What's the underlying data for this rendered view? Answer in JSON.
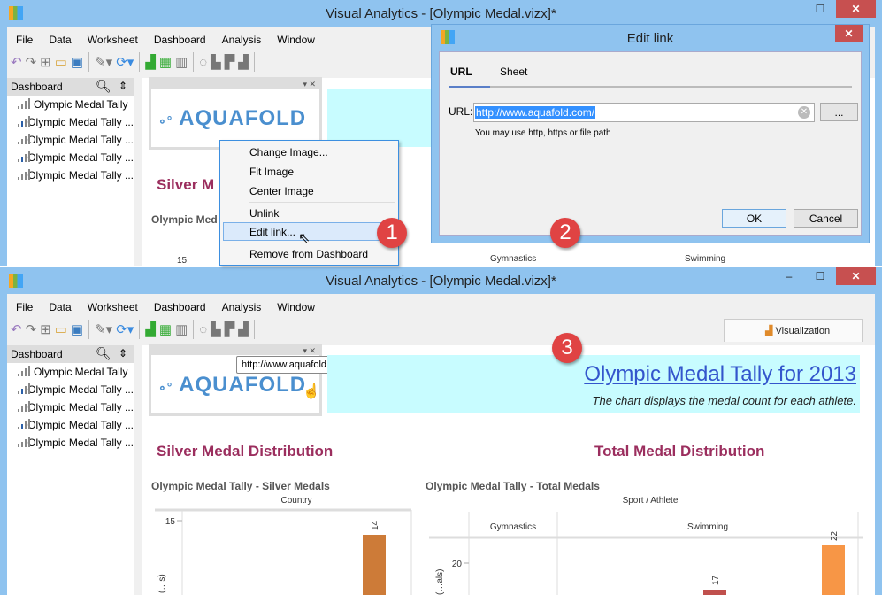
{
  "app": {
    "title": "Visual Analytics - [Olympic Medal.vizx]*",
    "window_controls": {
      "minimize": "–",
      "maximize": "☐",
      "close": "✕"
    },
    "menu": [
      "File",
      "Data",
      "Worksheet",
      "Dashboard",
      "Analysis",
      "Window"
    ],
    "toolbar_icons": [
      "undo-icon",
      "redo-icon",
      "new-icon",
      "open-icon",
      "save-icon",
      "brush-icon",
      "refresh-icon",
      "add-chart-icon",
      "add-table-icon",
      "chart-icon",
      "lasso-icon",
      "sort-asc-icon",
      "sort-desc-icon",
      "stack-icon"
    ],
    "visualization_tab": "Visualization",
    "sidebar": {
      "header": "Dashboard",
      "items": [
        "Olympic Medal Tally",
        "Olympic Medal Tally ...",
        "Olympic Medal Tally ...",
        "Olympic Medal Tally ...",
        "Olympic Medal Tally ..."
      ]
    }
  },
  "dashboard": {
    "logo_text": "AQUAFOLD",
    "title": "Olympic Medal Tally for 2013",
    "subtitle": "The chart displays the medal count for each athlete.",
    "tooltip": "http://www.aquafold.com/",
    "silver_section": "Silver Medal Distribution",
    "total_section": "Total Medal Distribution",
    "silver_chart_title": "Olympic Medal Tally - Silver Medals",
    "total_chart_title": "Olympic Medal Tally - Total Medals",
    "silver_section_cut": "Silver M",
    "silver_chart_title_cut": "Olympic Med"
  },
  "context_menu": {
    "items": [
      "Change Image...",
      "Fit Image",
      "Center Image",
      "Unlink",
      "Edit link...",
      "Remove from Dashboard"
    ],
    "highlighted": "Edit link..."
  },
  "edit_link_dialog": {
    "title": "Edit link",
    "tabs": [
      "URL",
      "Sheet"
    ],
    "active_tab": "URL",
    "url_label": "URL:",
    "url_value": "http://www.aquafold.com/",
    "browse_label": "...",
    "hint": "You may use http, https or file path",
    "ok": "OK",
    "cancel": "Cancel"
  },
  "badges": [
    "1",
    "2",
    "3"
  ],
  "chart_data": [
    {
      "type": "bar",
      "title": "Olympic Medal Tally - Silver Medals",
      "xlabel": "Country",
      "ylabel": "(…s)",
      "y_ticks": [
        15
      ],
      "values": [
        14
      ],
      "colors": [
        "#cd7b38"
      ]
    },
    {
      "type": "bar",
      "title": "Olympic Medal Tally - Total Medals",
      "xlabel": "Sport / Athlete",
      "ylabel": "(…als)",
      "categories": [
        "Gymnastics",
        "Swimming"
      ],
      "y_ticks": [
        20
      ],
      "values": [
        17,
        22
      ],
      "colors": [
        "#c0504d",
        "#f79646"
      ]
    }
  ],
  "colors": {
    "titlebar": "#8fc3ef",
    "close": "#c75050",
    "banner": "#c8fcff",
    "section_title": "#9b2e5e",
    "link": "#3355cc",
    "badge": "#e04343"
  }
}
